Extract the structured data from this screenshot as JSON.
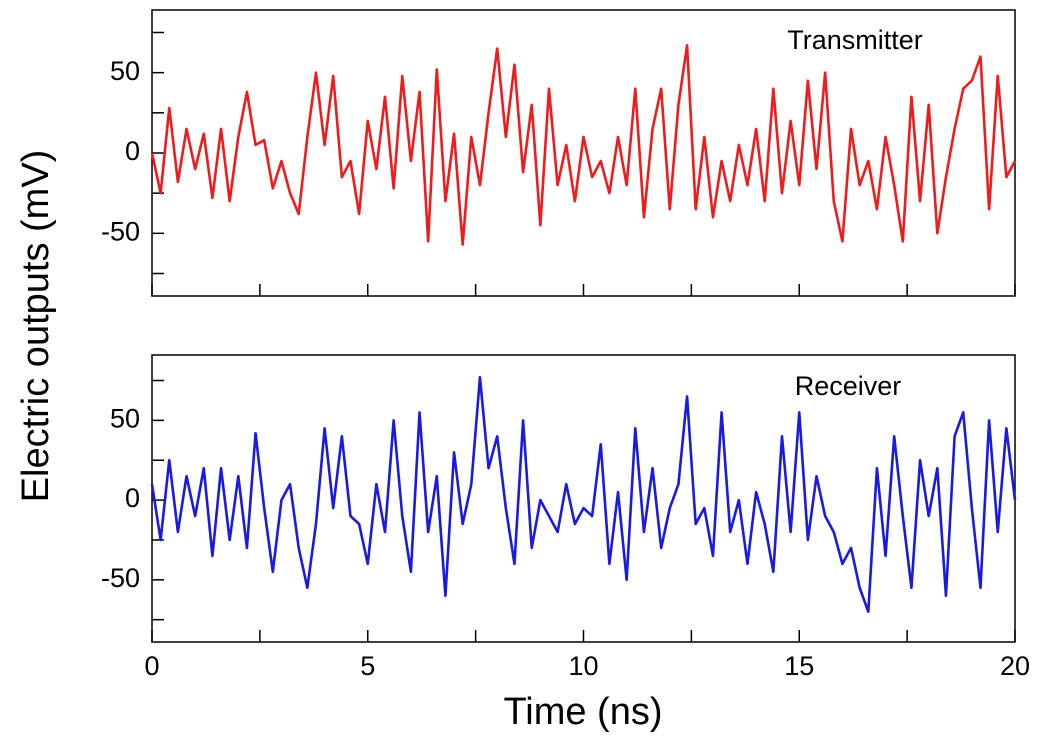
{
  "chart_data": [
    {
      "type": "line",
      "annotation": "Transmitter",
      "ylabel": "Electric outputs (mV)",
      "x": [
        0,
        0.2,
        0.4,
        0.6,
        0.8,
        1,
        1.2,
        1.4,
        1.6,
        1.8,
        2,
        2.2,
        2.4,
        2.6,
        2.8,
        3,
        3.2,
        3.4,
        3.6,
        3.8,
        4,
        4.2,
        4.4,
        4.6,
        4.8,
        5,
        5.2,
        5.4,
        5.6,
        5.8,
        6,
        6.2,
        6.4,
        6.6,
        6.8,
        7,
        7.2,
        7.4,
        7.6,
        7.8,
        8,
        8.2,
        8.4,
        8.6,
        8.8,
        9,
        9.2,
        9.4,
        9.6,
        9.8,
        10,
        10.2,
        10.4,
        10.6,
        10.8,
        11,
        11.2,
        11.4,
        11.6,
        11.8,
        12,
        12.2,
        12.4,
        12.6,
        12.8,
        13,
        13.2,
        13.4,
        13.6,
        13.8,
        14,
        14.2,
        14.4,
        14.6,
        14.8,
        15,
        15.2,
        15.4,
        15.6,
        15.8,
        16,
        16.2,
        16.4,
        16.6,
        16.8,
        17,
        17.2,
        17.4,
        17.6,
        17.8,
        18,
        18.2,
        18.4,
        18.6,
        18.8,
        19,
        19.2,
        19.4,
        19.6,
        19.8,
        20
      ],
      "series": [
        {
          "color": "#ee1c1c",
          "values": [
            0,
            -25,
            28,
            -18,
            15,
            -10,
            12,
            -28,
            15,
            -30,
            10,
            38,
            5,
            8,
            -22,
            -5,
            -25,
            -38,
            10,
            50,
            5,
            48,
            -15,
            -5,
            -38,
            20,
            -10,
            35,
            -22,
            48,
            -5,
            38,
            -55,
            52,
            -30,
            12,
            -57,
            10,
            -20,
            25,
            65,
            10,
            55,
            -12,
            30,
            -45,
            40,
            -20,
            5,
            -30,
            10,
            -15,
            -5,
            -25,
            10,
            -20,
            40,
            -40,
            15,
            40,
            -35,
            30,
            67,
            -35,
            10,
            -40,
            -5,
            -30,
            5,
            -20,
            15,
            -30,
            40,
            -25,
            20,
            -20,
            45,
            -10,
            50,
            -30,
            -55,
            15,
            -20,
            -5,
            -35,
            10,
            -20,
            -55,
            35,
            -30,
            30,
            -50,
            -15,
            15,
            40,
            45,
            60,
            -35,
            48,
            -15,
            -5
          ]
        }
      ],
      "xlim": [
        0,
        20
      ],
      "xticks": [
        0,
        5,
        10,
        15,
        20
      ],
      "xminor": [
        2.5,
        7.5,
        12.5,
        17.5
      ],
      "xtick_labels": false,
      "ylim": [
        -89,
        89
      ],
      "yticks": [
        -50,
        0,
        50
      ],
      "yminor": [
        -75,
        -25,
        25,
        75
      ]
    },
    {
      "type": "line",
      "annotation": "Receiver",
      "xlabel": "Time (ns)",
      "x": [
        0,
        0.2,
        0.4,
        0.6,
        0.8,
        1,
        1.2,
        1.4,
        1.6,
        1.8,
        2,
        2.2,
        2.4,
        2.6,
        2.8,
        3,
        3.2,
        3.4,
        3.6,
        3.8,
        4,
        4.2,
        4.4,
        4.6,
        4.8,
        5,
        5.2,
        5.4,
        5.6,
        5.8,
        6,
        6.2,
        6.4,
        6.6,
        6.8,
        7,
        7.2,
        7.4,
        7.6,
        7.8,
        8,
        8.2,
        8.4,
        8.6,
        8.8,
        9,
        9.2,
        9.4,
        9.6,
        9.8,
        10,
        10.2,
        10.4,
        10.6,
        10.8,
        11,
        11.2,
        11.4,
        11.6,
        11.8,
        12,
        12.2,
        12.4,
        12.6,
        12.8,
        13,
        13.2,
        13.4,
        13.6,
        13.8,
        14,
        14.2,
        14.4,
        14.6,
        14.8,
        15,
        15.2,
        15.4,
        15.6,
        15.8,
        16,
        16.2,
        16.4,
        16.6,
        16.8,
        17,
        17.2,
        17.4,
        17.6,
        17.8,
        18,
        18.2,
        18.4,
        18.6,
        18.8,
        19,
        19.2,
        19.4,
        19.6,
        19.8,
        20
      ],
      "series": [
        {
          "color": "#1a1ae0",
          "values": [
            10,
            -25,
            25,
            -20,
            15,
            -10,
            20,
            -35,
            20,
            -25,
            15,
            -30,
            42,
            -5,
            -45,
            0,
            10,
            -30,
            -55,
            -15,
            45,
            -5,
            40,
            -10,
            -15,
            -40,
            10,
            -20,
            50,
            -10,
            -45,
            55,
            -20,
            15,
            -60,
            30,
            -15,
            10,
            77,
            20,
            40,
            -5,
            -40,
            50,
            -30,
            0,
            -10,
            -20,
            10,
            -15,
            -5,
            -10,
            35,
            -40,
            5,
            -50,
            45,
            -20,
            20,
            -30,
            -5,
            10,
            65,
            -15,
            -5,
            -35,
            55,
            -20,
            0,
            -40,
            5,
            -15,
            -45,
            40,
            -20,
            55,
            -25,
            15,
            -10,
            -20,
            -40,
            -30,
            -55,
            -70,
            20,
            -35,
            40,
            -10,
            -55,
            25,
            -10,
            20,
            -60,
            40,
            55,
            -5,
            -55,
            50,
            -20,
            45,
            0
          ]
        }
      ],
      "xlim": [
        0,
        20
      ],
      "xticks": [
        0,
        5,
        10,
        15,
        20
      ],
      "xminor": [
        2.5,
        7.5,
        12.5,
        17.5
      ],
      "xtick_labels": true,
      "ylim": [
        -89,
        91
      ],
      "yticks": [
        -50,
        0,
        50
      ],
      "yminor": [
        -75,
        -25,
        25,
        75
      ]
    }
  ]
}
